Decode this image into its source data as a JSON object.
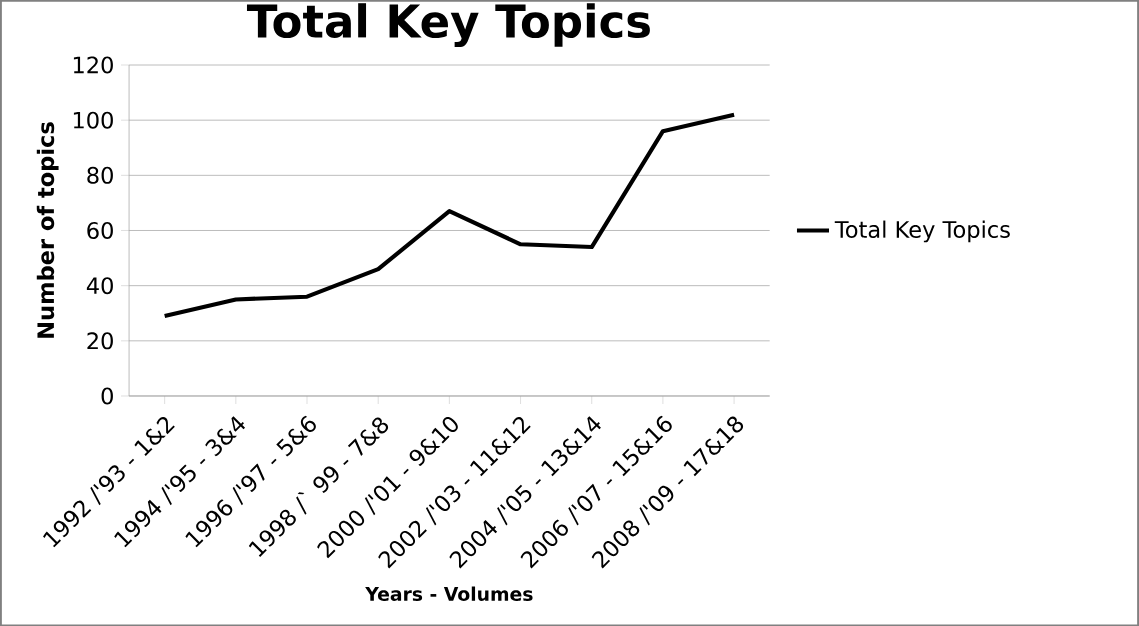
{
  "chart_data": {
    "type": "line",
    "title": "Total Key Topics",
    "xlabel": "Years - Volumes",
    "ylabel": "Number of topics",
    "categories": [
      "1992 /'93 - 1&2",
      "1994 /'95 - 3&4",
      "1996 /'97 - 5&6",
      "1998 /` 99 - 7&8",
      "2000 /'01 - 9&10",
      "2002 /'03 - 11&12",
      "2004 /'05 - 13&14",
      "2006 /'07 - 15&16",
      "2008 /'09 - 17&18"
    ],
    "series": [
      {
        "name": "Total Key Topics",
        "color": "#000000",
        "values": [
          29,
          35,
          36,
          46,
          67,
          55,
          54,
          96,
          102
        ]
      }
    ],
    "ylim": [
      0,
      120
    ],
    "yticks": [
      0,
      20,
      40,
      60,
      80,
      100,
      120
    ],
    "grid": "y",
    "legend": "right",
    "marker": "none",
    "line_style": "solid"
  }
}
